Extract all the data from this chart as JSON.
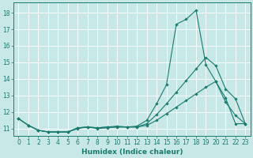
{
  "xlabel": "Humidex (Indice chaleur)",
  "x_values": [
    0,
    1,
    2,
    3,
    4,
    5,
    6,
    7,
    8,
    9,
    10,
    11,
    12,
    13,
    14,
    15,
    16,
    17,
    18,
    19,
    20,
    21,
    22,
    23
  ],
  "line_jagged": [
    11.6,
    11.2,
    10.9,
    10.8,
    10.8,
    10.8,
    11.05,
    11.1,
    11.05,
    11.1,
    11.15,
    11.1,
    11.15,
    11.5,
    12.5,
    13.65,
    17.3,
    17.6,
    18.15,
    14.85,
    13.85,
    12.85,
    11.3,
    11.3
  ],
  "line_mid": [
    11.6,
    11.2,
    10.9,
    10.8,
    10.8,
    10.8,
    11.05,
    11.1,
    11.05,
    11.1,
    11.1,
    11.1,
    11.1,
    11.3,
    11.85,
    12.5,
    13.2,
    13.9,
    14.6,
    15.3,
    14.8,
    13.4,
    12.8,
    11.3
  ],
  "line_low": [
    11.6,
    11.2,
    10.9,
    10.8,
    10.8,
    10.8,
    11.0,
    11.1,
    11.0,
    11.05,
    11.1,
    11.1,
    11.1,
    11.2,
    11.5,
    11.9,
    12.3,
    12.7,
    13.1,
    13.5,
    13.85,
    12.6,
    11.8,
    11.3
  ],
  "line_color": "#1a7a6e",
  "bg_color": "#c8e8e8",
  "grid_color": "#ffffff",
  "ylim": [
    10.55,
    18.6
  ],
  "xlim": [
    -0.5,
    23.5
  ],
  "yticks": [
    11,
    12,
    13,
    14,
    15,
    16,
    17,
    18
  ],
  "xticks": [
    0,
    1,
    2,
    3,
    4,
    5,
    6,
    7,
    8,
    9,
    10,
    11,
    12,
    13,
    14,
    15,
    16,
    17,
    18,
    19,
    20,
    21,
    22,
    23
  ],
  "tick_fontsize": 5.5,
  "xlabel_fontsize": 6.5
}
